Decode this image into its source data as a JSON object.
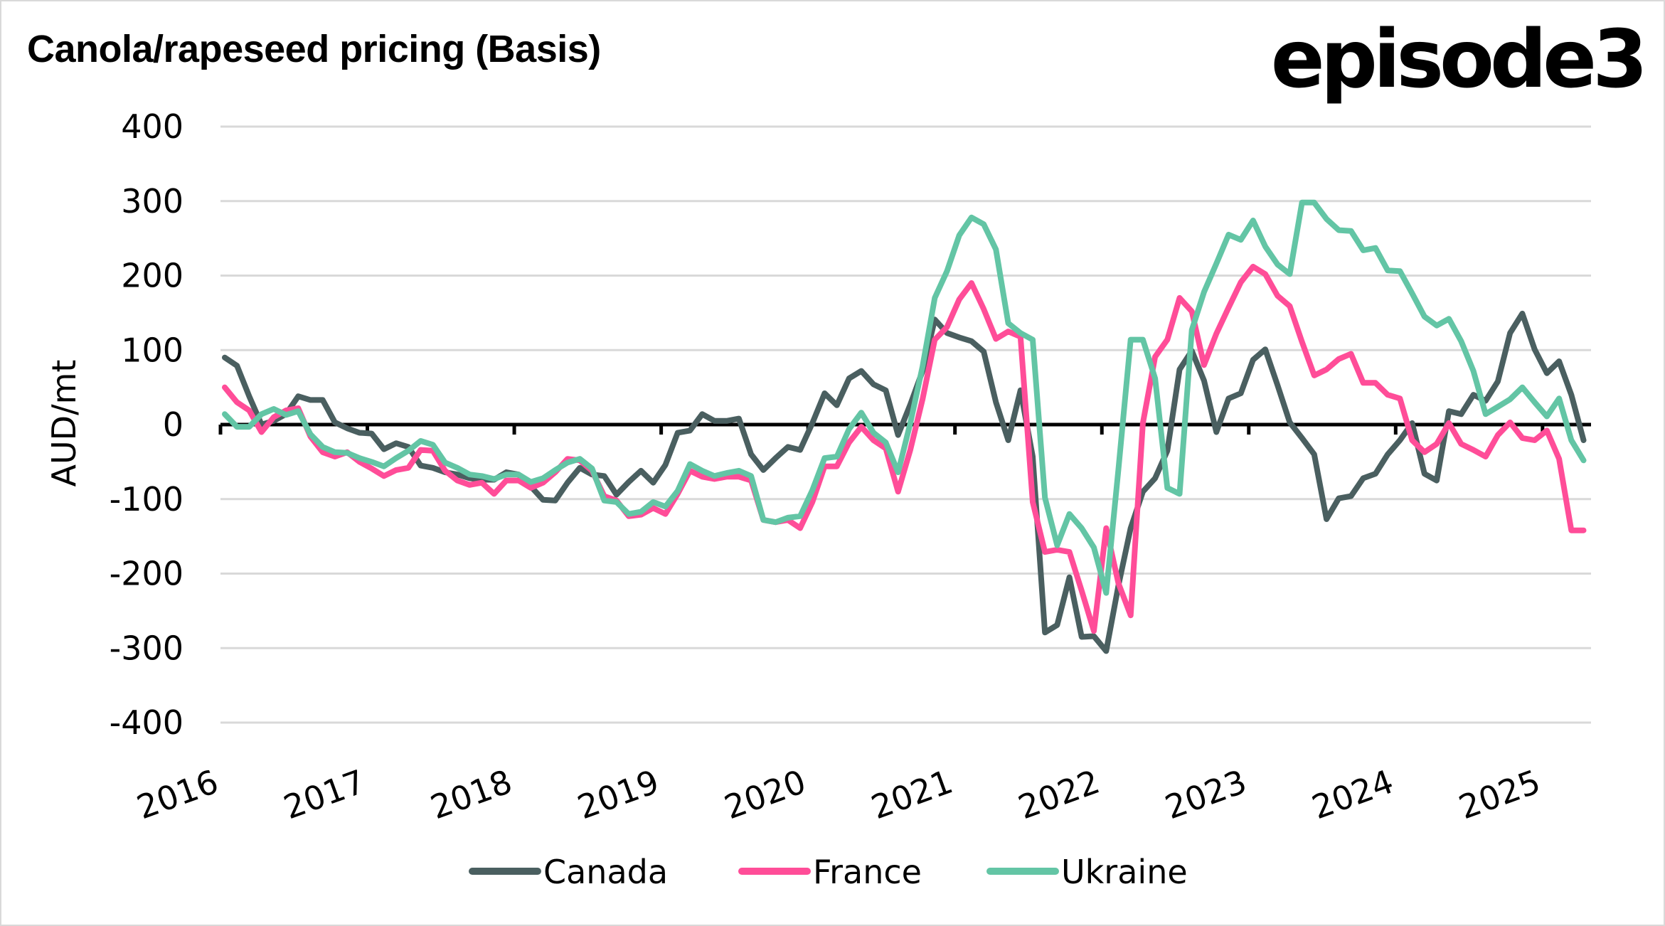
{
  "header": {
    "title": "Canola/rapeseed pricing (Basis)",
    "brand": "episode3"
  },
  "chart_data": {
    "type": "line",
    "title": "Canola/rapeseed pricing (Basis)",
    "xlabel": "",
    "ylabel": "AUD/mt",
    "ylim": [
      -400,
      400
    ],
    "yticks": [
      400,
      300,
      200,
      100,
      0,
      -100,
      -200,
      -300,
      -400
    ],
    "ytick_labels": [
      "400",
      "300",
      "200",
      "100",
      "0",
      "-100",
      "-200",
      "-300",
      "-400"
    ],
    "x_start": "2016-01",
    "x_end": "2025-04",
    "x_frequency": "monthly",
    "xlim_years": [
      2016,
      2025.33
    ],
    "xticks": [
      2016,
      2017,
      2018,
      2019,
      2020,
      2021,
      2022,
      2023,
      2024,
      2025
    ],
    "xtick_labels": [
      "2016",
      "2017",
      "2018",
      "2019",
      "2020",
      "2021",
      "2022",
      "2023",
      "2024",
      "2025"
    ],
    "grid": true,
    "zero_line": true,
    "legend_position": "bottom",
    "series": [
      {
        "name": "Canada",
        "color": "#4a5f60",
        "values": [
          90,
          79,
          38,
          0,
          5,
          14,
          38,
          33,
          33,
          3,
          -5,
          -11,
          -12,
          -33,
          -25,
          -30,
          -55,
          -58,
          -64,
          -67,
          -72,
          -74,
          -74,
          -64,
          -67,
          -83,
          -101,
          -102,
          -78,
          -58,
          -67,
          -69,
          -94,
          -77,
          -62,
          -78,
          -54,
          -11,
          -8,
          14,
          5,
          5,
          8,
          -40,
          -61,
          -45,
          -30,
          -34,
          2,
          42,
          26,
          62,
          72,
          54,
          46,
          -14,
          27,
          72,
          141,
          123,
          117,
          112,
          98,
          30,
          -21,
          46,
          -43,
          -279,
          -269,
          -205,
          -285,
          -284,
          -304,
          -216,
          -139,
          -90,
          -72,
          -35,
          74,
          99,
          59,
          -10,
          35,
          42,
          87,
          101,
          53,
          3,
          -18,
          -40,
          -127,
          -99,
          -96,
          -72,
          -66,
          -40,
          -21,
          2,
          -66,
          -75,
          18,
          14,
          40,
          32,
          58,
          123,
          149,
          101,
          69,
          85,
          40,
          -21
        ]
      },
      {
        "name": "France",
        "color": "#ff4d98",
        "values": [
          50,
          30,
          19,
          -10,
          10,
          19,
          22,
          -16,
          -37,
          -43,
          -37,
          -50,
          -59,
          -69,
          -61,
          -58,
          -34,
          -35,
          -62,
          -75,
          -81,
          -78,
          -93,
          -75,
          -75,
          -85,
          -78,
          -64,
          -46,
          -48,
          -62,
          -96,
          -102,
          -123,
          -121,
          -112,
          -120,
          -93,
          -62,
          -70,
          -73,
          -70,
          -70,
          -75,
          -128,
          -131,
          -128,
          -139,
          -104,
          -56,
          -56,
          -24,
          -3,
          -21,
          -32,
          -90,
          -34,
          34,
          114,
          131,
          168,
          190,
          155,
          115,
          125,
          118,
          -104,
          -171,
          -168,
          -171,
          -223,
          -277,
          -139,
          -213,
          -256,
          2,
          91,
          114,
          170,
          152,
          80,
          122,
          157,
          191,
          212,
          202,
          173,
          159,
          111,
          66,
          74,
          88,
          95,
          56,
          56,
          40,
          35,
          -21,
          -37,
          -26,
          2,
          -26,
          -34,
          -43,
          -14,
          3,
          -18,
          -21,
          -8,
          -46,
          -142,
          -142
        ]
      },
      {
        "name": "Ukraine",
        "color": "#63c5a5",
        "values": [
          14,
          -3,
          -3,
          14,
          21,
          13,
          18,
          -13,
          -30,
          -37,
          -38,
          -45,
          -50,
          -56,
          -45,
          -35,
          -22,
          -27,
          -51,
          -58,
          -67,
          -69,
          -73,
          -67,
          -67,
          -77,
          -72,
          -61,
          -51,
          -46,
          -59,
          -102,
          -104,
          -120,
          -117,
          -104,
          -110,
          -89,
          -53,
          -62,
          -69,
          -65,
          -62,
          -69,
          -128,
          -131,
          -125,
          -123,
          -88,
          -45,
          -43,
          -6,
          16,
          -11,
          -24,
          -64,
          2,
          78,
          170,
          206,
          254,
          278,
          269,
          235,
          136,
          123,
          114,
          -98,
          -162,
          -120,
          -139,
          -165,
          -226,
          -60,
          114,
          114,
          62,
          -85,
          -93,
          127,
          178,
          216,
          255,
          248,
          274,
          239,
          215,
          202,
          298,
          298,
          276,
          261,
          260,
          234,
          237,
          207,
          206,
          176,
          145,
          133,
          142,
          112,
          72,
          14,
          24,
          34,
          50,
          30,
          11,
          35,
          -21,
          -48
        ]
      }
    ]
  }
}
